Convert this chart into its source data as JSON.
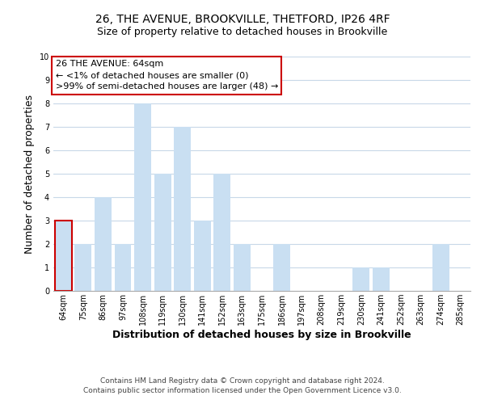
{
  "title": "26, THE AVENUE, BROOKVILLE, THETFORD, IP26 4RF",
  "subtitle": "Size of property relative to detached houses in Brookville",
  "xlabel": "Distribution of detached houses by size in Brookville",
  "ylabel": "Number of detached properties",
  "categories": [
    "64sqm",
    "75sqm",
    "86sqm",
    "97sqm",
    "108sqm",
    "119sqm",
    "130sqm",
    "141sqm",
    "152sqm",
    "163sqm",
    "175sqm",
    "186sqm",
    "197sqm",
    "208sqm",
    "219sqm",
    "230sqm",
    "241sqm",
    "252sqm",
    "263sqm",
    "274sqm",
    "285sqm"
  ],
  "values": [
    3,
    2,
    4,
    2,
    8,
    5,
    7,
    3,
    5,
    2,
    0,
    2,
    0,
    0,
    0,
    1,
    1,
    0,
    0,
    2,
    0
  ],
  "highlight_index": 0,
  "bar_color": "#c9dff2",
  "bar_edge_color": "none",
  "highlight_edge_color": "#cc0000",
  "ylim": [
    0,
    10
  ],
  "yticks": [
    0,
    1,
    2,
    3,
    4,
    5,
    6,
    7,
    8,
    9,
    10
  ],
  "annotation_box_text": "26 THE AVENUE: 64sqm\n← <1% of detached houses are smaller (0)\n>99% of semi-detached houses are larger (48) →",
  "annotation_box_color": "#ffffff",
  "annotation_box_edge_color": "#cc0000",
  "footer_line1": "Contains HM Land Registry data © Crown copyright and database right 2024.",
  "footer_line2": "Contains public sector information licensed under the Open Government Licence v3.0.",
  "background_color": "#ffffff",
  "grid_color": "#c8d8e8",
  "title_fontsize": 10,
  "subtitle_fontsize": 9,
  "axis_label_fontsize": 9,
  "tick_fontsize": 7,
  "annotation_fontsize": 8,
  "footer_fontsize": 6.5
}
